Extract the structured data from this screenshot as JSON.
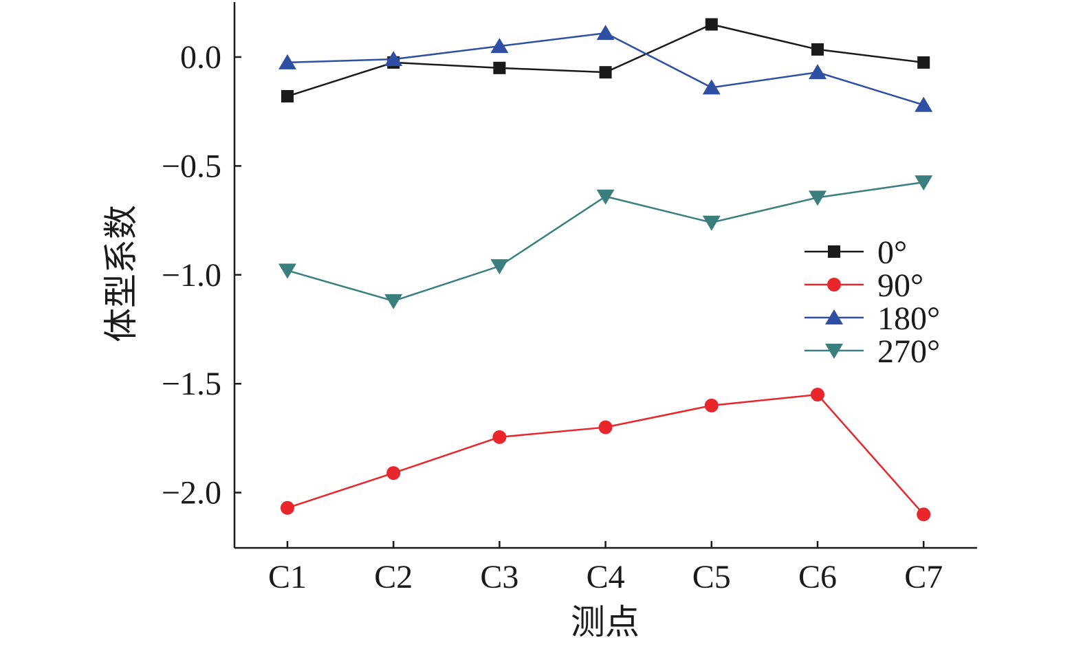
{
  "chart_data": {
    "type": "line",
    "xlabel": "测点",
    "ylabel": "体型系数",
    "categories": [
      "C1",
      "C2",
      "C3",
      "C4",
      "C5",
      "C6",
      "C7"
    ],
    "ylim": [
      -2.25,
      0.25
    ],
    "yticks": [
      0.0,
      -0.5,
      -1.0,
      -1.5,
      -2.0
    ],
    "ytick_labels": [
      "0.0",
      "−0.5",
      "−1.0",
      "−1.5",
      "−2.0"
    ],
    "grid": false,
    "legend_position": "right",
    "series": [
      {
        "name": "0°",
        "color": "#1a1a1a",
        "marker": "square",
        "values": [
          -0.18,
          -0.025,
          -0.05,
          -0.07,
          0.15,
          0.035,
          -0.025
        ]
      },
      {
        "name": "90°",
        "color": "#e8262b",
        "marker": "circle",
        "values": [
          -2.07,
          -1.91,
          -1.745,
          -1.7,
          -1.6,
          -1.55,
          -2.1
        ]
      },
      {
        "name": "180°",
        "color": "#2e4fa3",
        "marker": "triangle-up",
        "values": [
          -0.025,
          -0.01,
          0.05,
          0.11,
          -0.14,
          -0.07,
          -0.22
        ]
      },
      {
        "name": "270°",
        "color": "#3a7f7d",
        "marker": "triangle-down",
        "values": [
          -0.98,
          -1.12,
          -0.96,
          -0.64,
          -0.76,
          -0.645,
          -0.575
        ]
      }
    ]
  }
}
